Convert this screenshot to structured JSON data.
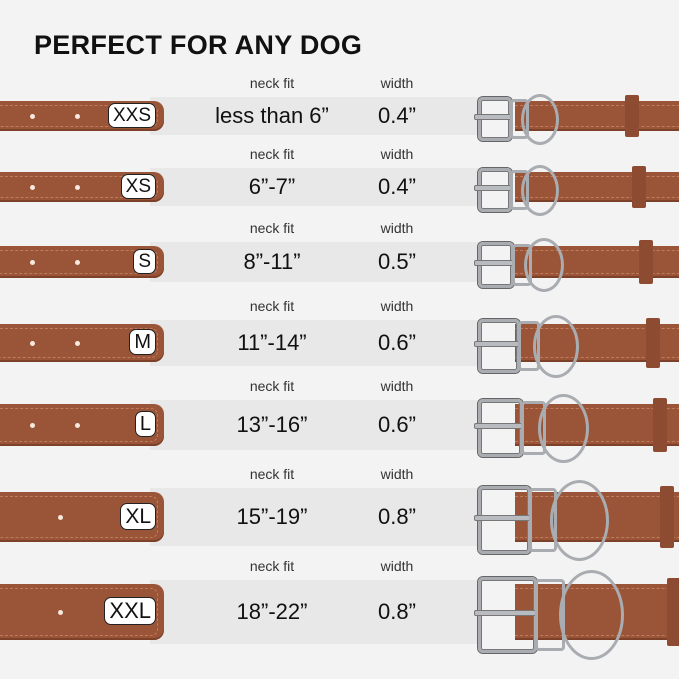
{
  "title": "PERFECT FOR ANY DOG",
  "colors": {
    "leather": "#9a5538",
    "background": "#f3f3f3",
    "band": "#e8e8e8",
    "metal": "#a9acb0"
  },
  "rows": [
    {
      "size": "XXS",
      "neck_label": "neck fit",
      "neck_fit": "less than 6”",
      "width_label": "width",
      "width": "0.4”"
    },
    {
      "size": "XS",
      "neck_label": "neck fit",
      "neck_fit": "6”-7”",
      "width_label": "width",
      "width": "0.4”"
    },
    {
      "size": "S",
      "neck_label": "neck fit",
      "neck_fit": "8”-11”",
      "width_label": "width",
      "width": "0.5”"
    },
    {
      "size": "M",
      "neck_label": "neck fit",
      "neck_fit": "11”-14”",
      "width_label": "width",
      "width": "0.6”"
    },
    {
      "size": "L",
      "neck_label": "neck fit",
      "neck_fit": "13”-16”",
      "width_label": "width",
      "width": "0.6”"
    },
    {
      "size": "XL",
      "neck_label": "neck fit",
      "neck_fit": "15”-19”",
      "width_label": "width",
      "width": "0.8”"
    },
    {
      "size": "XXL",
      "neck_label": "neck fit",
      "neck_fit": "18”-22”",
      "width_label": "width",
      "width": "0.8”"
    }
  ]
}
